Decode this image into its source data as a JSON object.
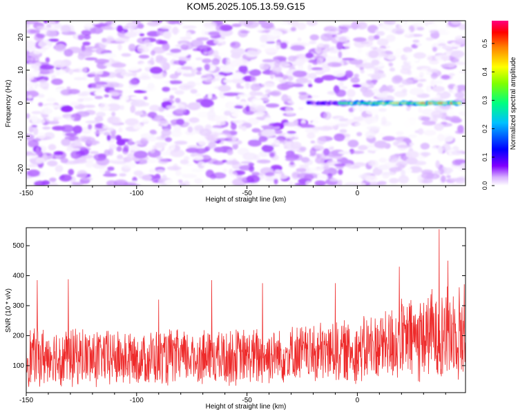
{
  "title": "KOM5.2025.105.13.59.G15",
  "chart_data": [
    {
      "type": "heatmap",
      "xlabel": "Height of straight line (km)",
      "ylabel": "Frequency (Hz)",
      "xlim": [
        -150,
        49
      ],
      "ylim": [
        -25,
        25
      ],
      "x_ticks": [
        -150,
        -100,
        -50,
        0
      ],
      "y_ticks": [
        -20,
        -10,
        0,
        10,
        20
      ],
      "colorbar": {
        "label": "Normalized spectral amplitude",
        "range": [
          0.0,
          0.58
        ],
        "ticks": [
          "0.0",
          "0.1",
          "0.2",
          "0.3",
          "0.4",
          "0.5"
        ],
        "tick_values": [
          0.0,
          0.1,
          0.2,
          0.3,
          0.4,
          0.5
        ],
        "colors": [
          "#ffffff",
          "#d9b3ff",
          "#8000ff",
          "#0000ff",
          "#00c0ff",
          "#00ff80",
          "#80ff00",
          "#ffff00",
          "#ff8000",
          "#ff0000",
          "#ff0080"
        ]
      },
      "background_amplitude": [
        0.0,
        0.06
      ],
      "signal": {
        "frequency_hz": 0,
        "x_start": -22,
        "x_end": 47,
        "amplitude": [
          0.15,
          0.55
        ]
      }
    },
    {
      "type": "line",
      "xlabel": "Height of straight line (km)",
      "ylabel": "SNR (10 * v/v)",
      "xlim": [
        -150,
        49
      ],
      "ylim": [
        10,
        560
      ],
      "x_ticks": [
        -150,
        -100,
        -50,
        0
      ],
      "y_ticks": [
        100,
        200,
        300,
        400,
        500
      ],
      "series": [
        {
          "color": "#ee2a2a",
          "baseline": [
            [
              -150,
              130
            ],
            [
              -100,
              125
            ],
            [
              -50,
              130
            ],
            [
              0,
              150
            ],
            [
              30,
              200
            ],
            [
              49,
              215
            ]
          ],
          "spread": [
            [
              -150,
              90
            ],
            [
              -100,
              85
            ],
            [
              -50,
              85
            ],
            [
              0,
              95
            ],
            [
              30,
              135
            ],
            [
              49,
              150
            ]
          ],
          "peaks": [
            [
              -145,
              385
            ],
            [
              -131,
              388
            ],
            [
              -90,
              320
            ],
            [
              -66,
              385
            ],
            [
              -43,
              375
            ],
            [
              -10,
              375
            ],
            [
              19,
              430
            ],
            [
              37,
              555
            ],
            [
              41,
              450
            ]
          ]
        }
      ]
    }
  ]
}
